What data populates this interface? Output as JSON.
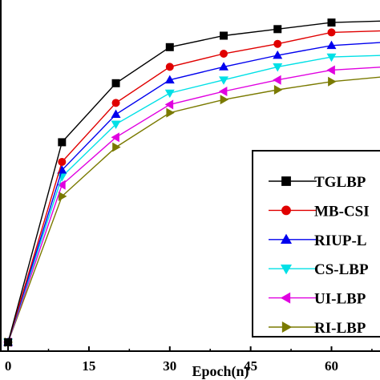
{
  "chart_data": {
    "type": "line",
    "xlabel": "Epoch(n)",
    "ylabel": "",
    "xlim": [
      -1.5,
      69
    ],
    "ylim": [
      0,
      100
    ],
    "xticks": [
      0,
      15,
      30,
      45,
      60
    ],
    "x": [
      0,
      10,
      20,
      30,
      40,
      50,
      60,
      70
    ],
    "grid": false,
    "legend_position": "right",
    "series": [
      {
        "name": "TGLBP",
        "color": "#000000",
        "marker": "square",
        "values": [
          1,
          62,
          80,
          91,
          94.5,
          96.5,
          98.5,
          99
        ]
      },
      {
        "name": "MB-CSI",
        "color": "#e00000",
        "marker": "circle",
        "values": [
          1,
          56,
          74,
          85,
          89,
          92,
          95.5,
          96
        ]
      },
      {
        "name": "RIUP-L",
        "color": "#0000ee",
        "marker": "triangle-up",
        "values": [
          1,
          53.5,
          70.5,
          81,
          85,
          88.5,
          91.5,
          92.5
        ]
      },
      {
        "name": "CS-LBP",
        "color": "#00e0e6",
        "marker": "triangle-down",
        "values": [
          1,
          51.5,
          67.5,
          77,
          81,
          85,
          88,
          88.5
        ]
      },
      {
        "name": "UI-LBP",
        "color": "#e000e0",
        "marker": "triangle-left",
        "values": [
          1,
          49,
          63.5,
          73.5,
          77.5,
          81,
          84,
          85
        ]
      },
      {
        "name": "RI-LBP",
        "color": "#7a7a00",
        "marker": "triangle-right",
        "values": [
          1,
          45.5,
          60.5,
          71,
          75,
          78,
          80.5,
          82
        ]
      }
    ]
  }
}
